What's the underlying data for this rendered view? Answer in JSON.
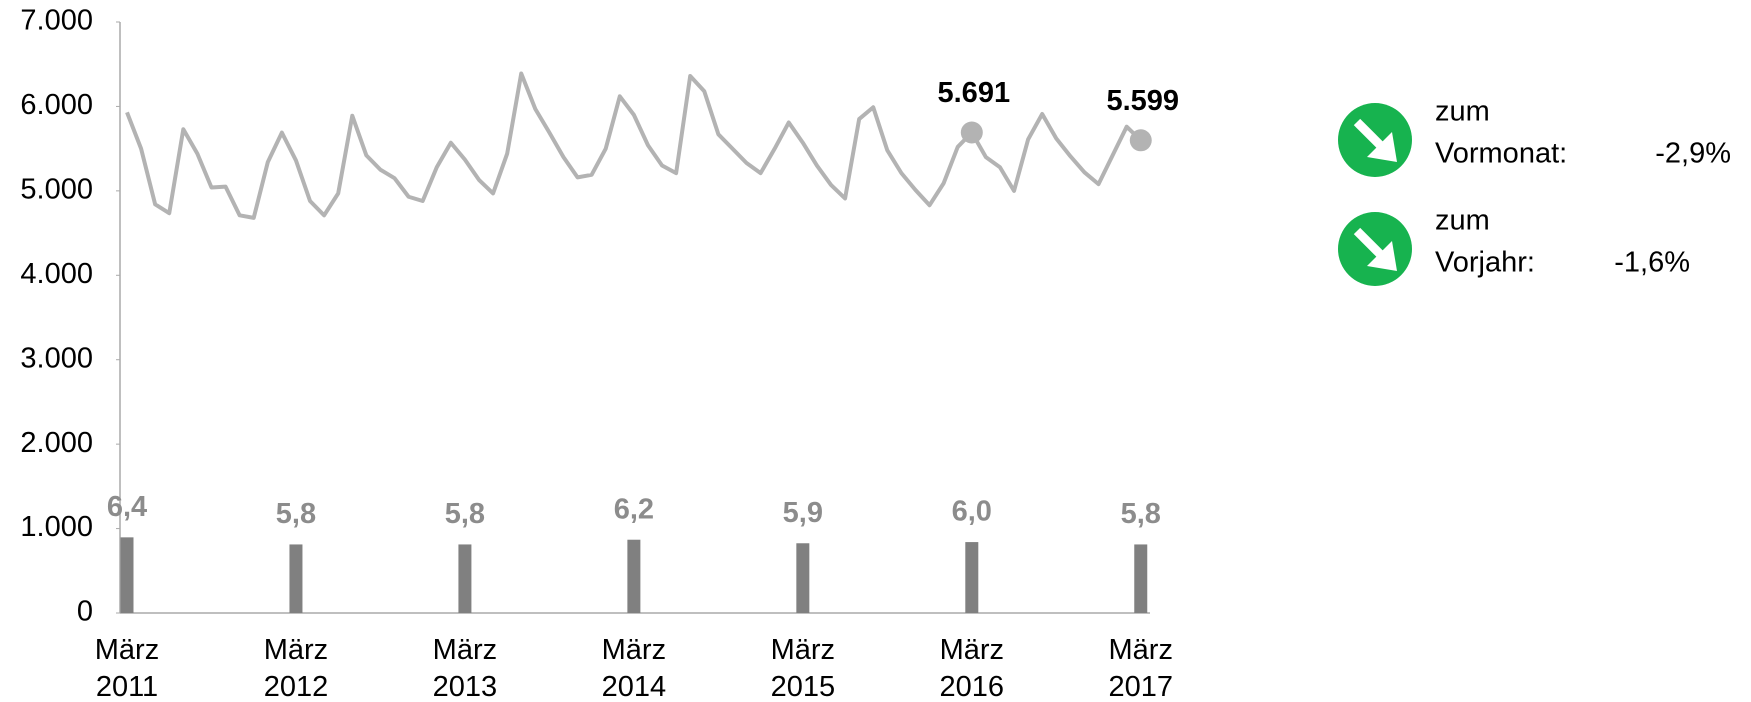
{
  "chart_data": {
    "type": "line",
    "categories": [
      "März 2011",
      null,
      null,
      null,
      null,
      null,
      null,
      null,
      null,
      null,
      null,
      null,
      "März 2012",
      null,
      null,
      null,
      null,
      null,
      null,
      null,
      null,
      null,
      null,
      null,
      "März 2013",
      null,
      null,
      null,
      null,
      null,
      null,
      null,
      null,
      null,
      null,
      null,
      "März 2014",
      null,
      null,
      null,
      null,
      null,
      null,
      null,
      null,
      null,
      null,
      null,
      "März 2015",
      null,
      null,
      null,
      null,
      null,
      null,
      null,
      null,
      null,
      null,
      null,
      "März 2016",
      null,
      null,
      null,
      null,
      null,
      null,
      null,
      null,
      null,
      null,
      null,
      "März 2017"
    ],
    "series": [
      {
        "type": "line",
        "color": "#b3b3b3",
        "values": [
          5930,
          5500,
          4840,
          4735,
          5730,
          5440,
          5040,
          5050,
          4710,
          4680,
          5340,
          5690,
          5360,
          4880,
          4710,
          4970,
          5890,
          5420,
          5250,
          5150,
          4930,
          4880,
          5280,
          5570,
          5370,
          5130,
          4970,
          5440,
          6390,
          5970,
          5690,
          5400,
          5160,
          5190,
          5500,
          6120,
          5900,
          5540,
          5300,
          5210,
          6360,
          6180,
          5670,
          5500,
          5330,
          5210,
          5500,
          5810,
          5570,
          5300,
          5070,
          4910,
          5850,
          5990,
          5480,
          5210,
          5010,
          4830,
          5090,
          5520,
          5691,
          5400,
          5280,
          5000,
          5610,
          5910,
          5620,
          5410,
          5220,
          5080,
          5420,
          5760,
          5599
        ],
        "value_labels": [
          null,
          null,
          null,
          null,
          null,
          null,
          null,
          null,
          null,
          null,
          null,
          null,
          null,
          null,
          null,
          null,
          null,
          null,
          null,
          null,
          null,
          null,
          null,
          null,
          null,
          null,
          null,
          null,
          null,
          null,
          null,
          null,
          null,
          null,
          null,
          null,
          null,
          null,
          null,
          null,
          null,
          null,
          null,
          null,
          null,
          null,
          null,
          null,
          null,
          null,
          null,
          null,
          null,
          null,
          null,
          null,
          null,
          null,
          null,
          null,
          "5.691",
          null,
          null,
          null,
          null,
          null,
          null,
          null,
          null,
          null,
          null,
          null,
          "5.599"
        ]
      },
      {
        "type": "bar",
        "color": "#808080",
        "axis": "y2",
        "values": [
          6.4,
          null,
          null,
          null,
          null,
          null,
          null,
          null,
          null,
          null,
          null,
          null,
          5.8,
          null,
          null,
          null,
          null,
          null,
          null,
          null,
          null,
          null,
          null,
          null,
          5.8,
          null,
          null,
          null,
          null,
          null,
          null,
          null,
          null,
          null,
          null,
          null,
          6.2,
          null,
          null,
          null,
          null,
          null,
          null,
          null,
          null,
          null,
          null,
          null,
          5.9,
          null,
          null,
          null,
          null,
          null,
          null,
          null,
          null,
          null,
          null,
          null,
          6.0,
          null,
          null,
          null,
          null,
          null,
          null,
          null,
          null,
          null,
          null,
          null,
          5.8
        ],
        "value_labels": [
          "6,4",
          null,
          null,
          null,
          null,
          null,
          null,
          null,
          null,
          null,
          null,
          null,
          "5,8",
          null,
          null,
          null,
          null,
          null,
          null,
          null,
          null,
          null,
          null,
          null,
          "5,8",
          null,
          null,
          null,
          null,
          null,
          null,
          null,
          null,
          null,
          null,
          null,
          "6,2",
          null,
          null,
          null,
          null,
          null,
          null,
          null,
          null,
          null,
          null,
          null,
          "5,9",
          null,
          null,
          null,
          null,
          null,
          null,
          null,
          null,
          null,
          null,
          null,
          "6,0",
          null,
          null,
          null,
          null,
          null,
          null,
          null,
          null,
          null,
          null,
          null,
          "5,8"
        ]
      }
    ],
    "ylim": [
      0,
      7000
    ],
    "yticks": [
      0,
      {
        "value": 1000,
        "label": "1.000"
      },
      {
        "value": 2000,
        "label": "2.000"
      },
      {
        "value": 3000,
        "label": "3.000"
      },
      {
        "value": 4000,
        "label": "4.000"
      },
      {
        "value": 5000,
        "label": "5.000"
      },
      {
        "value": 6000,
        "label": "6.000"
      },
      {
        "value": 7000,
        "label": "7.000"
      }
    ],
    "y2lim": [
      0,
      50
    ],
    "grid": false,
    "indicators": [
      {
        "line1": "zum",
        "line2": "Vormonat:",
        "change": "-2,9%",
        "color": "#17b34f"
      },
      {
        "line1": "zum",
        "line2": "Vorjahr:",
        "change": "-1,6%",
        "color": "#17b34f"
      }
    ]
  }
}
